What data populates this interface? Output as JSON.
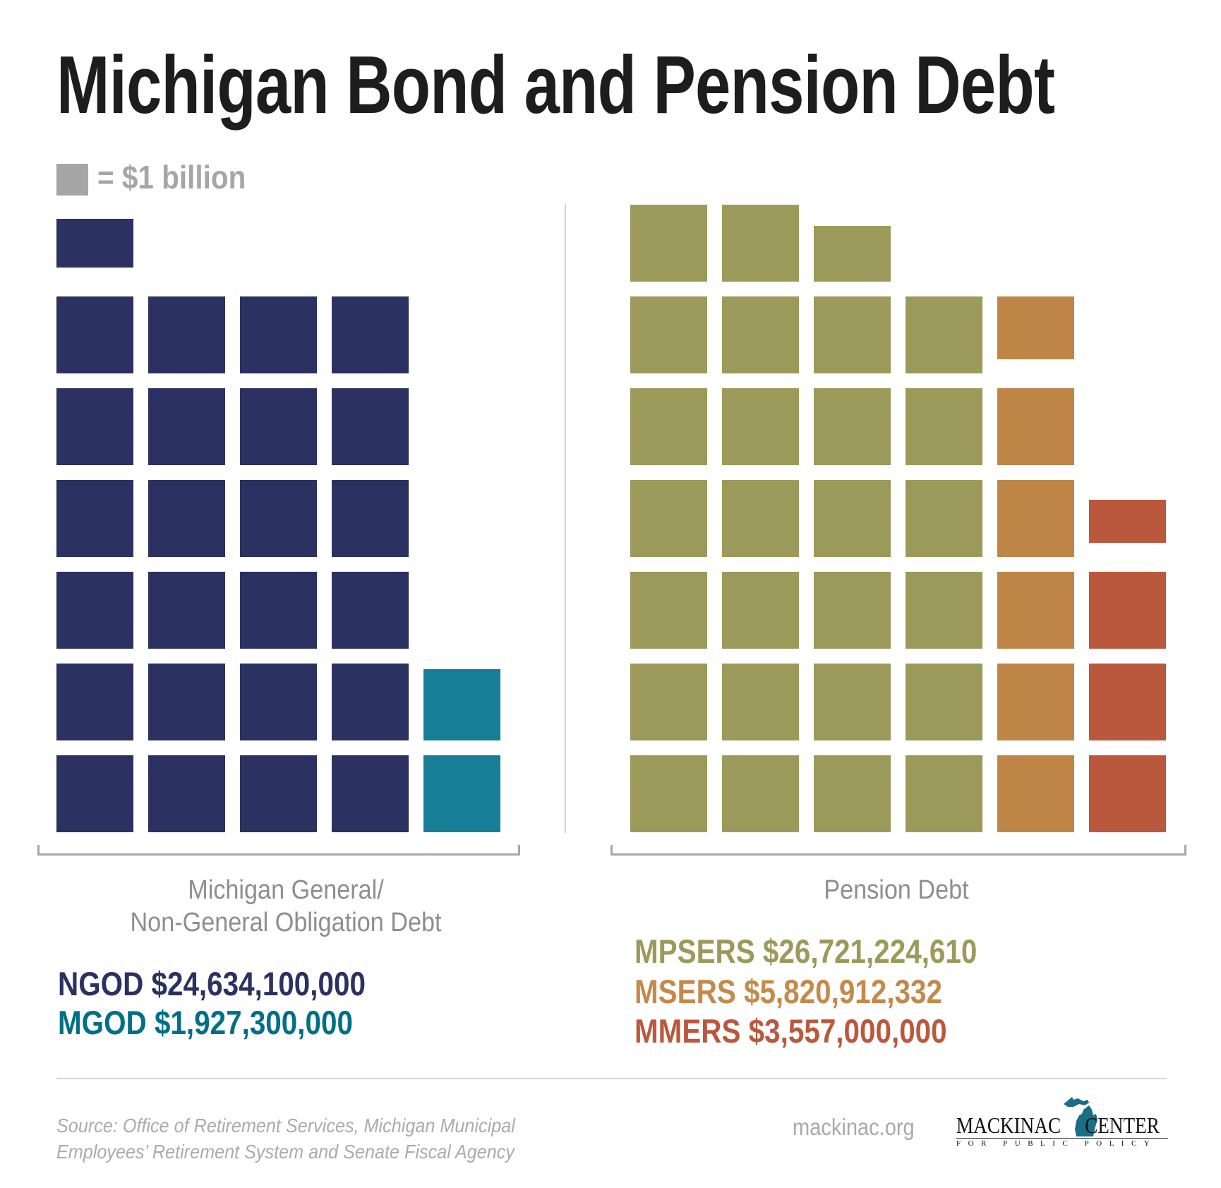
{
  "title": "Michigan Bond and Pension Debt",
  "legend": {
    "unit_label": "= $1 billion",
    "swatch_color": "#a6a6a6"
  },
  "groups": [
    {
      "label_line1": "Michigan General/",
      "label_line2": "Non-General Obligation Debt",
      "series": [
        {
          "name": "NGOD",
          "amount_text": "NGOD $24,634,100,000",
          "color": "#2b3161"
        },
        {
          "name": "MGOD",
          "amount_text": "MGOD $1,927,300,000",
          "color": "#177e98"
        }
      ]
    },
    {
      "label_line1": "Pension Debt",
      "series": [
        {
          "name": "MPSERS",
          "amount_text": "MPSERS $26,721,224,610",
          "color": "#9c9a5a"
        },
        {
          "name": "MSERS",
          "amount_text": "MSERS $5,820,912,332",
          "color": "#bf8547"
        },
        {
          "name": "MMERS",
          "amount_text": "MMERS $3,557,000,000",
          "color": "#ba583e"
        }
      ]
    }
  ],
  "footer": {
    "source_line1": "Source: Office of Retirement Services, Michigan Municipal",
    "source_line2": "Employees’ Retirement System and Senate Fiscal Agency",
    "site": "mackinac.org",
    "logo_left": "MACKINAC",
    "logo_right": "CENTER",
    "logo_sub": "FOR PUBLIC POLICY",
    "logo_map_color": "#1a6e85"
  },
  "chart_data": {
    "type": "bar",
    "subtype": "waffle / unit chart (each square = $1 billion)",
    "title": "Michigan Bond and Pension Debt",
    "unit": "$1 billion per square",
    "categories": [
      "Michigan General/Non-General Obligation Debt",
      "Pension Debt"
    ],
    "series": [
      {
        "name": "NGOD",
        "group": "Michigan General/Non-General Obligation Debt",
        "value": 24634100000,
        "value_billions": 24.634,
        "color": "#2b3161"
      },
      {
        "name": "MGOD",
        "group": "Michigan General/Non-General Obligation Debt",
        "value": 1927300000,
        "value_billions": 1.927,
        "color": "#177e98"
      },
      {
        "name": "MPSERS",
        "group": "Pension Debt",
        "value": 26721224610,
        "value_billions": 26.721,
        "color": "#9c9a5a"
      },
      {
        "name": "MSERS",
        "group": "Pension Debt",
        "value": 5820912332,
        "value_billions": 5.821,
        "color": "#bf8547"
      },
      {
        "name": "MMERS",
        "group": "Pension Debt",
        "value": 3557000000,
        "value_billions": 3.557,
        "color": "#ba583e"
      }
    ],
    "grid": false,
    "legend_position": "top-left"
  }
}
